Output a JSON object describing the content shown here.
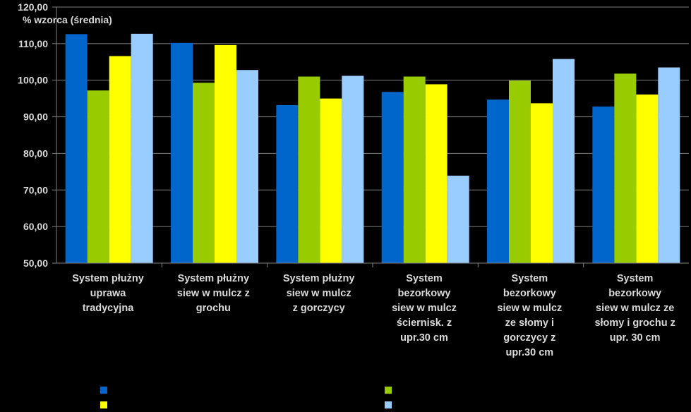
{
  "chart_data": {
    "type": "bar",
    "ylabel": "% wzorca (średnia)",
    "ylim": [
      50,
      120
    ],
    "yticks": [
      "50,00",
      "60,00",
      "70,00",
      "80,00",
      "90,00",
      "100,00",
      "110,00",
      "120,00"
    ],
    "grid": true,
    "legend": "bottom",
    "categories": [
      "System płużny\nuprawa\ntradycyjna",
      "System płużny\nsiew w mulcz z\ngrochu",
      "System płużny\nsiew w mulcz\nz gorczycy",
      "System\nbezorkowy\nsiew  w mulcz\nściernisk. z\nupr.30 cm",
      "System\nbezorkowy\nsiew  w mulcz\nze słomy i\ngorczycy z\nupr.30 cm",
      "System\nbezorkowy\nsiew w mulcz ze\nsłomy i grochu z\nupr. 30 cm"
    ],
    "series": [
      {
        "color": "#0066cc",
        "values": [
          112.6,
          110.2,
          93.2,
          96.8,
          94.7,
          92.8
        ]
      },
      {
        "color": "#99cc00",
        "values": [
          97.2,
          99.3,
          101.0,
          101.0,
          99.9,
          101.8
        ]
      },
      {
        "color": "#ffff00",
        "values": [
          106.6,
          109.6,
          95.0,
          98.9,
          93.7,
          96.1
        ]
      },
      {
        "color": "#99ccff",
        "values": [
          112.7,
          102.8,
          101.2,
          73.9,
          105.8,
          103.5
        ]
      }
    ]
  }
}
